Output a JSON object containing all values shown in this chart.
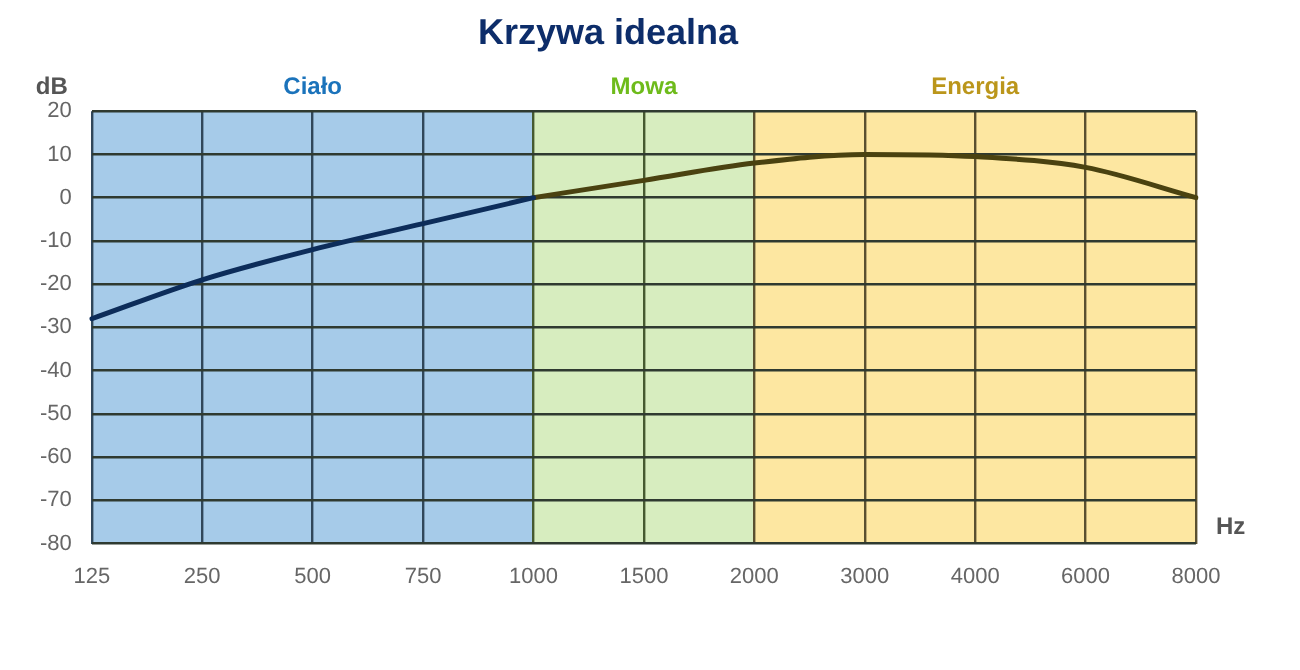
{
  "chart_data": {
    "type": "line",
    "title": "Krzywa idealna",
    "xlabel": "Hz",
    "ylabel": "dB",
    "categories": [
      "125",
      "250",
      "500",
      "750",
      "1000",
      "1500",
      "2000",
      "3000",
      "4000",
      "6000",
      "8000"
    ],
    "series": [
      {
        "color": "#0d2d5a",
        "values": [
          -28,
          -19,
          -12,
          -6,
          0,
          null,
          null,
          null,
          null,
          null,
          null
        ]
      },
      {
        "color": "#4a4210",
        "values": [
          null,
          null,
          null,
          null,
          0,
          4,
          8,
          10,
          9.5,
          7,
          0
        ]
      }
    ],
    "ylim": [
      -80,
      20
    ],
    "yticks": [
      -80,
      -70,
      -60,
      -50,
      -40,
      -30,
      -20,
      -10,
      0,
      10,
      20
    ],
    "bands": [
      {
        "axis": "x",
        "from": "125",
        "to": "1000",
        "label": "Ciało",
        "color": "#a6cbe9"
      },
      {
        "axis": "x",
        "from": "1000",
        "to": "2000",
        "label": "Mowa",
        "color": "#d7edbf"
      },
      {
        "axis": "x",
        "from": "2000",
        "to": "8000",
        "label": "Energia",
        "color": "#fde7a1"
      }
    ],
    "grid": true,
    "legend": false,
    "marker": "none",
    "line_style": "solid"
  }
}
